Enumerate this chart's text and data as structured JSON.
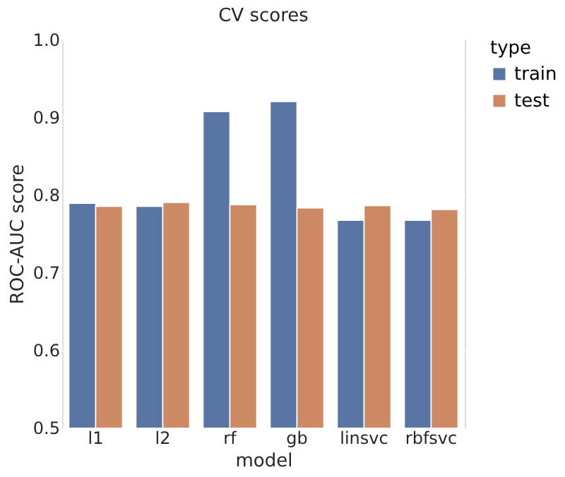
{
  "chart_data": {
    "type": "bar",
    "title": "CV scores",
    "xlabel": "model",
    "ylabel": "ROC-AUC score",
    "legend_title": "type",
    "categories": [
      "l1",
      "l2",
      "rf",
      "gb",
      "linsvc",
      "rbfsvc"
    ],
    "series": [
      {
        "name": "train",
        "color": "#5975a4",
        "values": [
          0.789,
          0.785,
          0.907,
          0.92,
          0.767,
          0.767
        ]
      },
      {
        "name": "test",
        "color": "#cc8963",
        "values": [
          0.785,
          0.79,
          0.787,
          0.783,
          0.786,
          0.781
        ]
      }
    ],
    "ylim": [
      0.5,
      1.0
    ],
    "yticks": [
      0.5,
      0.6,
      0.7,
      0.8,
      0.9,
      {
        "value": 1,
        "label": "1.0"
      }
    ],
    "grid": "y",
    "legend": "right"
  }
}
